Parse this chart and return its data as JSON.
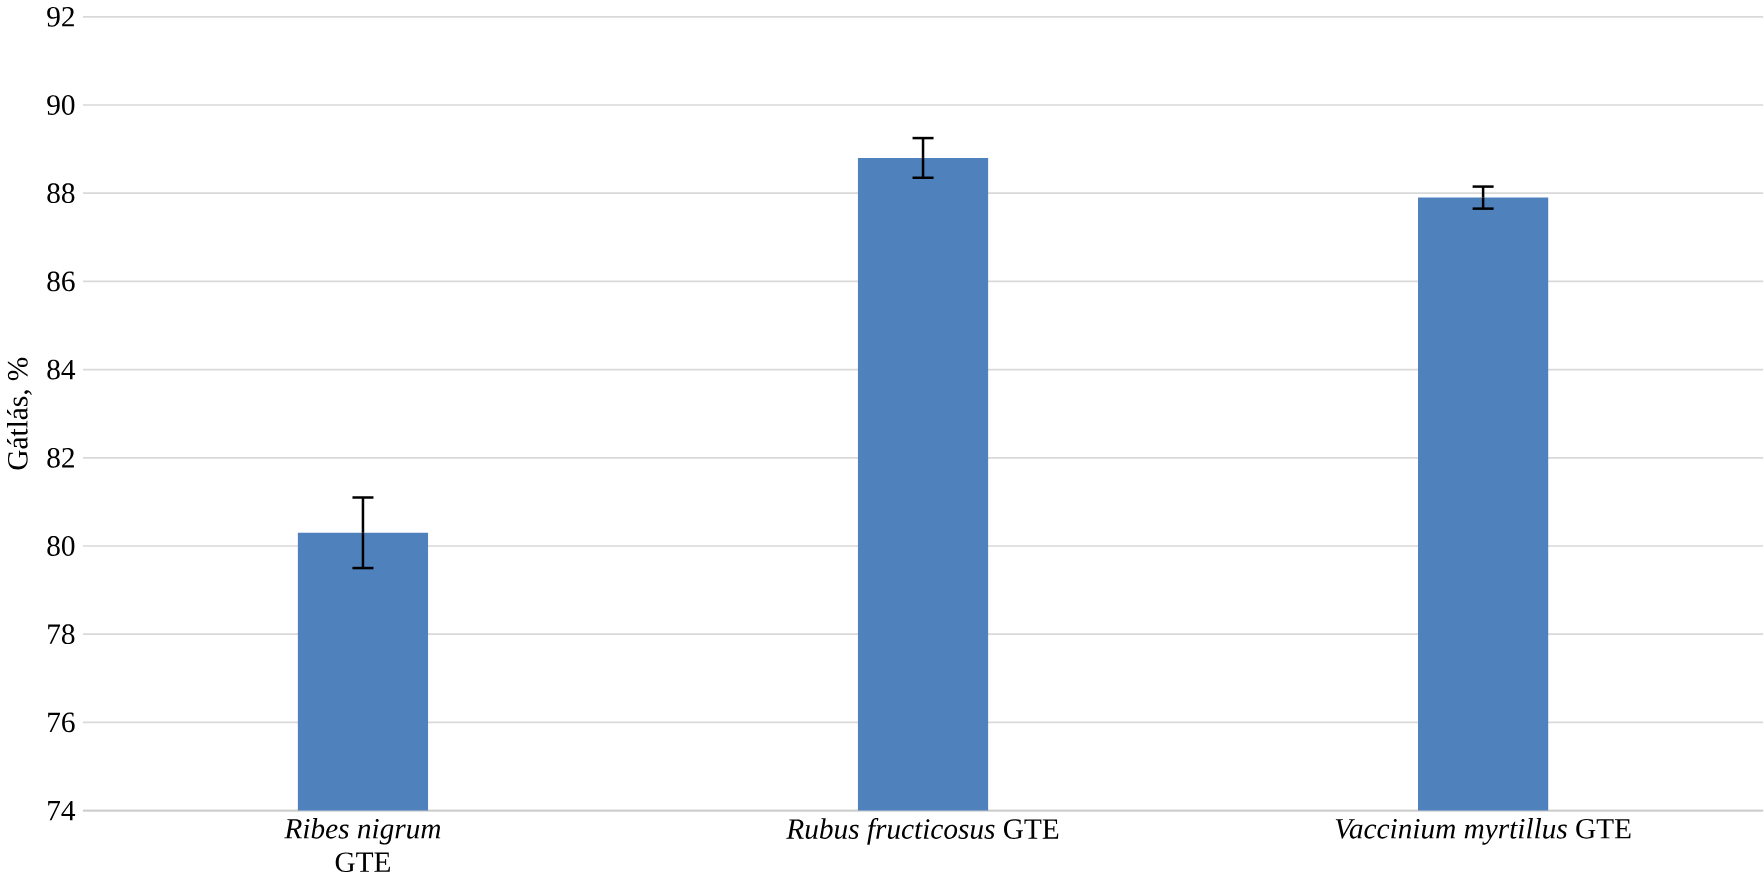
{
  "chart_data": {
    "type": "bar",
    "ylabel": "Gátlás, %",
    "categories": [
      "*Ribes nigrum* GTE",
      "*Rubus fructicosus* GTE",
      "*Vaccinium myrtillus* GTE"
    ],
    "values": [
      80.3,
      88.8,
      87.9
    ],
    "errors": [
      0.8,
      0.45,
      0.25
    ],
    "color": "#4f81bd",
    "ylim": [
      74,
      92
    ],
    "yticks": [
      74,
      76,
      78,
      80,
      82,
      84,
      86,
      88,
      90,
      92
    ],
    "grid": "y"
  }
}
